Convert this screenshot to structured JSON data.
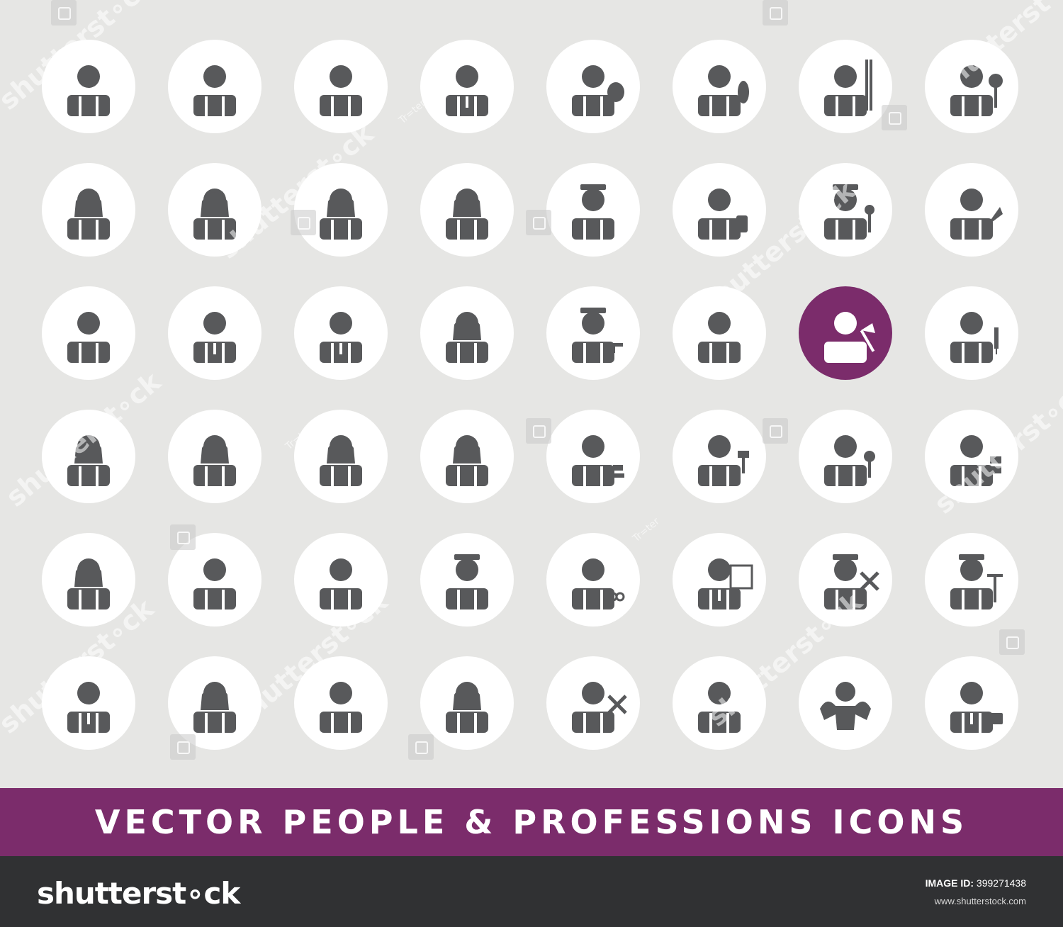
{
  "colors": {
    "background": "#e6e6e4",
    "circle": "#ffffff",
    "glyph": "#58595b",
    "accent": "#7b2c6b",
    "footer": "#303133"
  },
  "grid": {
    "rows": 6,
    "cols": 8,
    "highlighted": [
      {
        "row": 2,
        "col": 6
      }
    ],
    "icons": [
      [
        "person-overalls-icon",
        "old-man-mustache-icon",
        "person-icon",
        "businessman-glasses-icon",
        "artist-painter-icon",
        "worker-tool-icon",
        "diver-snorkel-icon",
        "worker-sign-icon"
      ],
      [
        "woman-icon",
        "woman-ponytails-icon",
        "woman-glasses-icon",
        "woman-headband-icon",
        "graduate-icon",
        "bellboy-luggage-icon",
        "chef-spoon-icon",
        "builder-trowel-icon"
      ],
      [
        "messy-hair-boy-icon",
        "businessman-tie-icon",
        "man-bowtie-icon",
        "girl-round-face-icon",
        "policeman-gun-icon",
        "waiter-icon",
        "firefighter-axe-icon",
        "doctor-syringe-icon"
      ],
      [
        "woman-curly-icon",
        "woman-bob-hair-icon",
        "girl-pigtails-icon",
        "woman-long-hair-icon",
        "judge-gavel-icon",
        "painter-roller-icon",
        "mechanic-wrench-icon",
        "builder-bricks-icon"
      ],
      [
        "businesswoman-icon",
        "old-man-bald-icon",
        "boy-curly-icon",
        "man-cap-icon",
        "barber-scissors-icon",
        "presenter-board-icon",
        "pilot-plane-icon",
        "farmer-rake-icon"
      ],
      [
        "waiter-bowtie-icon",
        "woman-curly-long-icon",
        "man-short-hair-icon",
        "woman-short-hair-icon",
        "astronaut-planet-icon",
        "operator-headset-icon",
        "bodybuilder-icon",
        "businessman-briefcase-icon"
      ]
    ]
  },
  "banner": {
    "title": "VECTOR PEOPLE & PROFESSIONS ICONS"
  },
  "footer": {
    "logo": "shutterst∘ck",
    "image_id_label": "IMAGE ID:",
    "image_id": "399271438",
    "url": "www.shutterstock.com"
  },
  "watermark": {
    "text": "shutterst∘ck",
    "author": "Tr=ter"
  }
}
